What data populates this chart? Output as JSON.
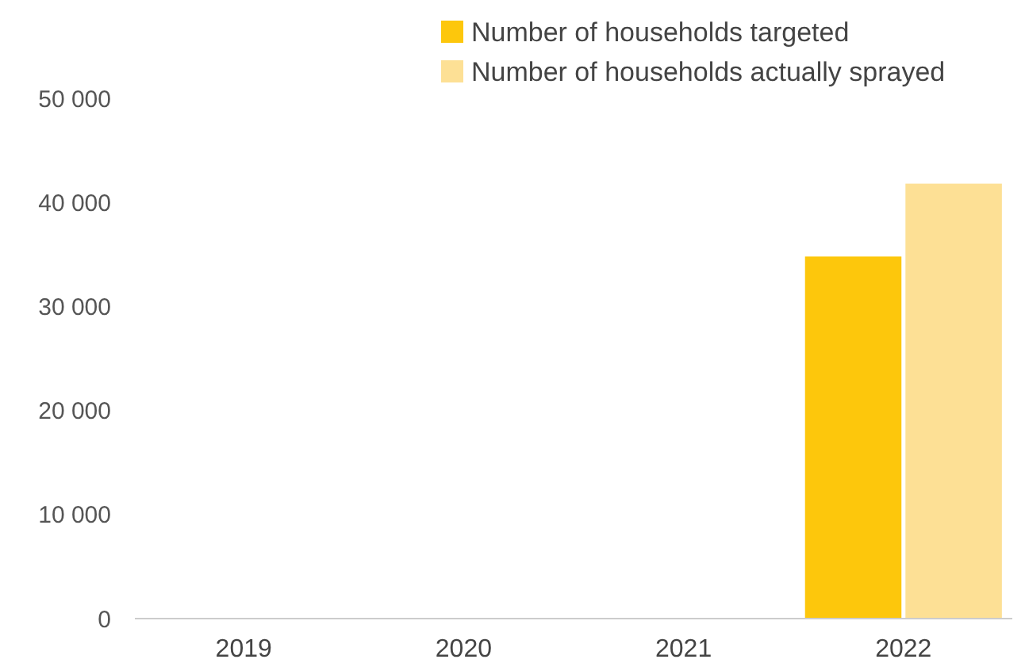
{
  "chart_data": {
    "type": "bar",
    "categories": [
      "2019",
      "2020",
      "2021",
      "2022"
    ],
    "series": [
      {
        "name": "Number of households targeted",
        "color": "#fdc70c",
        "values": [
          null,
          null,
          null,
          34800
        ]
      },
      {
        "name": "Number of households actually sprayed",
        "color": "#fde095",
        "values": [
          null,
          null,
          null,
          41800
        ]
      }
    ],
    "ylim": [
      0,
      50000
    ],
    "yticks": [
      {
        "value": 0,
        "label": "0"
      },
      {
        "value": 10000,
        "label": "10 000"
      },
      {
        "value": 20000,
        "label": "20 000"
      },
      {
        "value": 30000,
        "label": "30 000"
      },
      {
        "value": 40000,
        "label": "40 000"
      },
      {
        "value": 50000,
        "label": "50 000"
      }
    ],
    "grid": false,
    "legend": "top right"
  }
}
